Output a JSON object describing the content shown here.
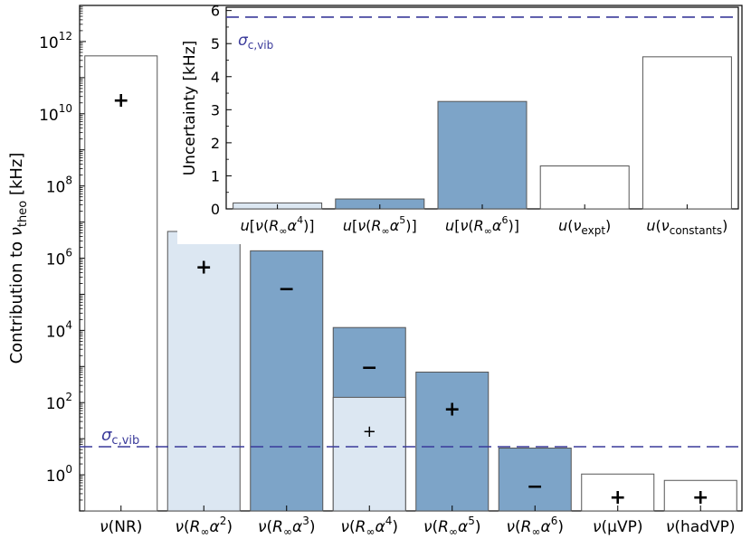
{
  "colors": {
    "none": "#ffffff",
    "light": "#dce7f2",
    "dark": "#7da4c8",
    "edge": "#555555",
    "sigma": "#3a3a9a"
  },
  "chart_data": [
    {
      "type": "bar",
      "yscale": "log",
      "ylabel_parts": [
        "Contribution to ",
        "ν",
        "theo",
        " [kHz]"
      ],
      "ylim": [
        0.1,
        10000000000000.0
      ],
      "yticks": [
        {
          "value": 1,
          "mant": "10",
          "exp": "0"
        },
        {
          "value": 100,
          "mant": "10",
          "exp": "2"
        },
        {
          "value": 10000,
          "mant": "10",
          "exp": "4"
        },
        {
          "value": 1000000,
          "mant": "10",
          "exp": "6"
        },
        {
          "value": 100000000,
          "mant": "10",
          "exp": "8"
        },
        {
          "value": 10000000000,
          "mant": "10",
          "exp": "10"
        },
        {
          "value": 1000000000000,
          "mant": "10",
          "exp": "12"
        }
      ],
      "categories": [
        {
          "label": [
            "ν",
            "(NR)"
          ],
          "value": 400000000000.0,
          "fill": "none",
          "sign": "+",
          "sign_value": 25000000000.0
        },
        {
          "label": [
            "ν",
            "(",
            "R",
            "∞",
            "α",
            "2",
            ")"
          ],
          "value": 5500000.0,
          "fill": "light",
          "sign": "+",
          "sign_value": 600000.0
        },
        {
          "label": [
            "ν",
            "(",
            "R",
            "∞",
            "α",
            "3",
            ")"
          ],
          "value": 1600000.0,
          "fill": "dark",
          "sign": "−",
          "sign_value": 150000.0
        },
        {
          "label": [
            "ν",
            "(",
            "R",
            "∞",
            "α",
            "4",
            ")"
          ],
          "value": 12000.0,
          "fill": "dark",
          "sign": "−",
          "sign_value": 1000,
          "sub_value": 140,
          "sub_fill": "light",
          "sub_sign": "+",
          "sub_sign_value": 17
        },
        {
          "label": [
            "ν",
            "(",
            "R",
            "∞",
            "α",
            "5",
            ")"
          ],
          "value": 700,
          "fill": "dark",
          "sign": "+",
          "sign_value": 70
        },
        {
          "label": [
            "ν",
            "(",
            "R",
            "∞",
            "α",
            "6",
            ")"
          ],
          "value": 5.5,
          "fill": "dark",
          "sign": "−",
          "sign_value": 0.5
        },
        {
          "label": [
            "ν",
            "(μVP)"
          ],
          "value": 1.05,
          "fill": "none",
          "sign": "+",
          "sign_value": 0.25
        },
        {
          "label": [
            "ν",
            "(hadVP)"
          ],
          "value": 0.7,
          "fill": "none",
          "sign": "+",
          "sign_value": 0.25
        }
      ],
      "sigma_line": {
        "value": 6,
        "label_main": "σ",
        "label_sub": "c,vib"
      }
    },
    {
      "type": "bar",
      "yscale": "linear",
      "ylabel": "Uncertainty [kHz]",
      "ylim": [
        0,
        6.1
      ],
      "yticks": [
        "0",
        "1",
        "2",
        "3",
        "4",
        "5",
        "6"
      ],
      "categories": [
        {
          "label": [
            "u",
            "[",
            "ν",
            "(",
            "R",
            "∞",
            "α",
            "4",
            ")]"
          ],
          "value": 0.18,
          "fill": "light"
        },
        {
          "label": [
            "u",
            "[",
            "ν",
            "(",
            "R",
            "∞",
            "α",
            "5",
            ")]"
          ],
          "value": 0.3,
          "fill": "dark"
        },
        {
          "label": [
            "u",
            "[",
            "ν",
            "(",
            "R",
            "∞",
            "α",
            "6",
            ")]"
          ],
          "value": 3.25,
          "fill": "dark"
        },
        {
          "label": [
            "u",
            "(",
            "ν",
            "expt",
            ")"
          ],
          "value": 1.3,
          "fill": "none"
        },
        {
          "label": [
            "u",
            "(",
            "ν",
            "constants",
            ")"
          ],
          "value": 4.6,
          "fill": "none"
        }
      ],
      "sigma_line": {
        "value": 5.8,
        "label_main": "σ",
        "label_sub": "c,vib"
      }
    }
  ]
}
